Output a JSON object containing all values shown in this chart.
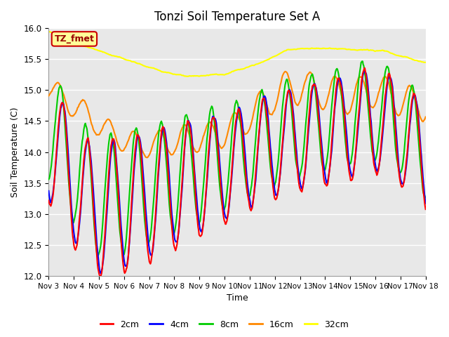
{
  "title": "Tonzi Soil Temperature Set A",
  "xlabel": "Time",
  "ylabel": "Soil Temperature (C)",
  "ylim": [
    12.0,
    16.0
  ],
  "yticks": [
    12.0,
    12.5,
    13.0,
    13.5,
    14.0,
    14.5,
    15.0,
    15.5,
    16.0
  ],
  "xtick_labels": [
    "Nov 3",
    "Nov 4",
    "Nov 5",
    "Nov 6",
    "Nov 7",
    "Nov 8",
    "Nov 9",
    "Nov 10",
    "Nov 11",
    "Nov 12",
    "Nov 13",
    "Nov 14",
    "Nov 15",
    "Nov 16",
    "Nov 17",
    "Nov 18"
  ],
  "colors": {
    "2cm": "#ff0000",
    "4cm": "#0000ff",
    "8cm": "#00cc00",
    "16cm": "#ff8800",
    "32cm": "#ffff00"
  },
  "legend_label": "TZ_fmet",
  "legend_bg": "#ffff99",
  "legend_border": "#cc0000",
  "axes_bg": "#e8e8e8",
  "fig_bg": "#ffffff",
  "linewidth": 1.5
}
